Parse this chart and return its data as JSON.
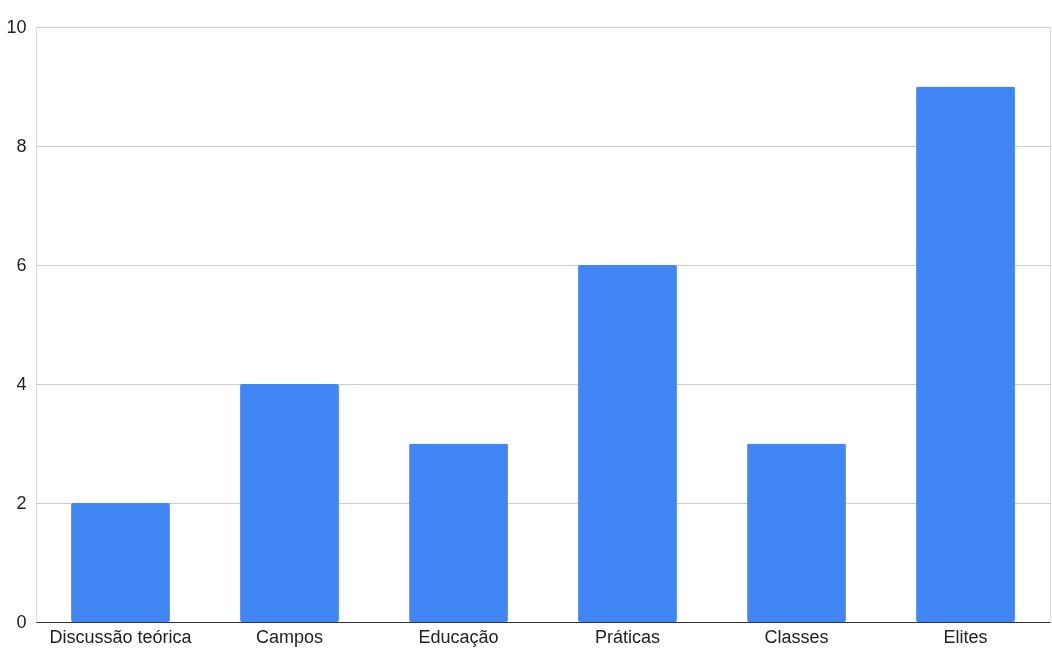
{
  "chart_data": {
    "type": "bar",
    "categories": [
      "Discussão teórica",
      "Campos",
      "Educação",
      "Práticas",
      "Classes",
      "Elites"
    ],
    "values": [
      2,
      4,
      3,
      6,
      3,
      9
    ],
    "color": "#4285f4",
    "ylim": [
      0,
      10
    ],
    "yticks": [
      0,
      2,
      4,
      6,
      8,
      10
    ],
    "grid": "y"
  }
}
